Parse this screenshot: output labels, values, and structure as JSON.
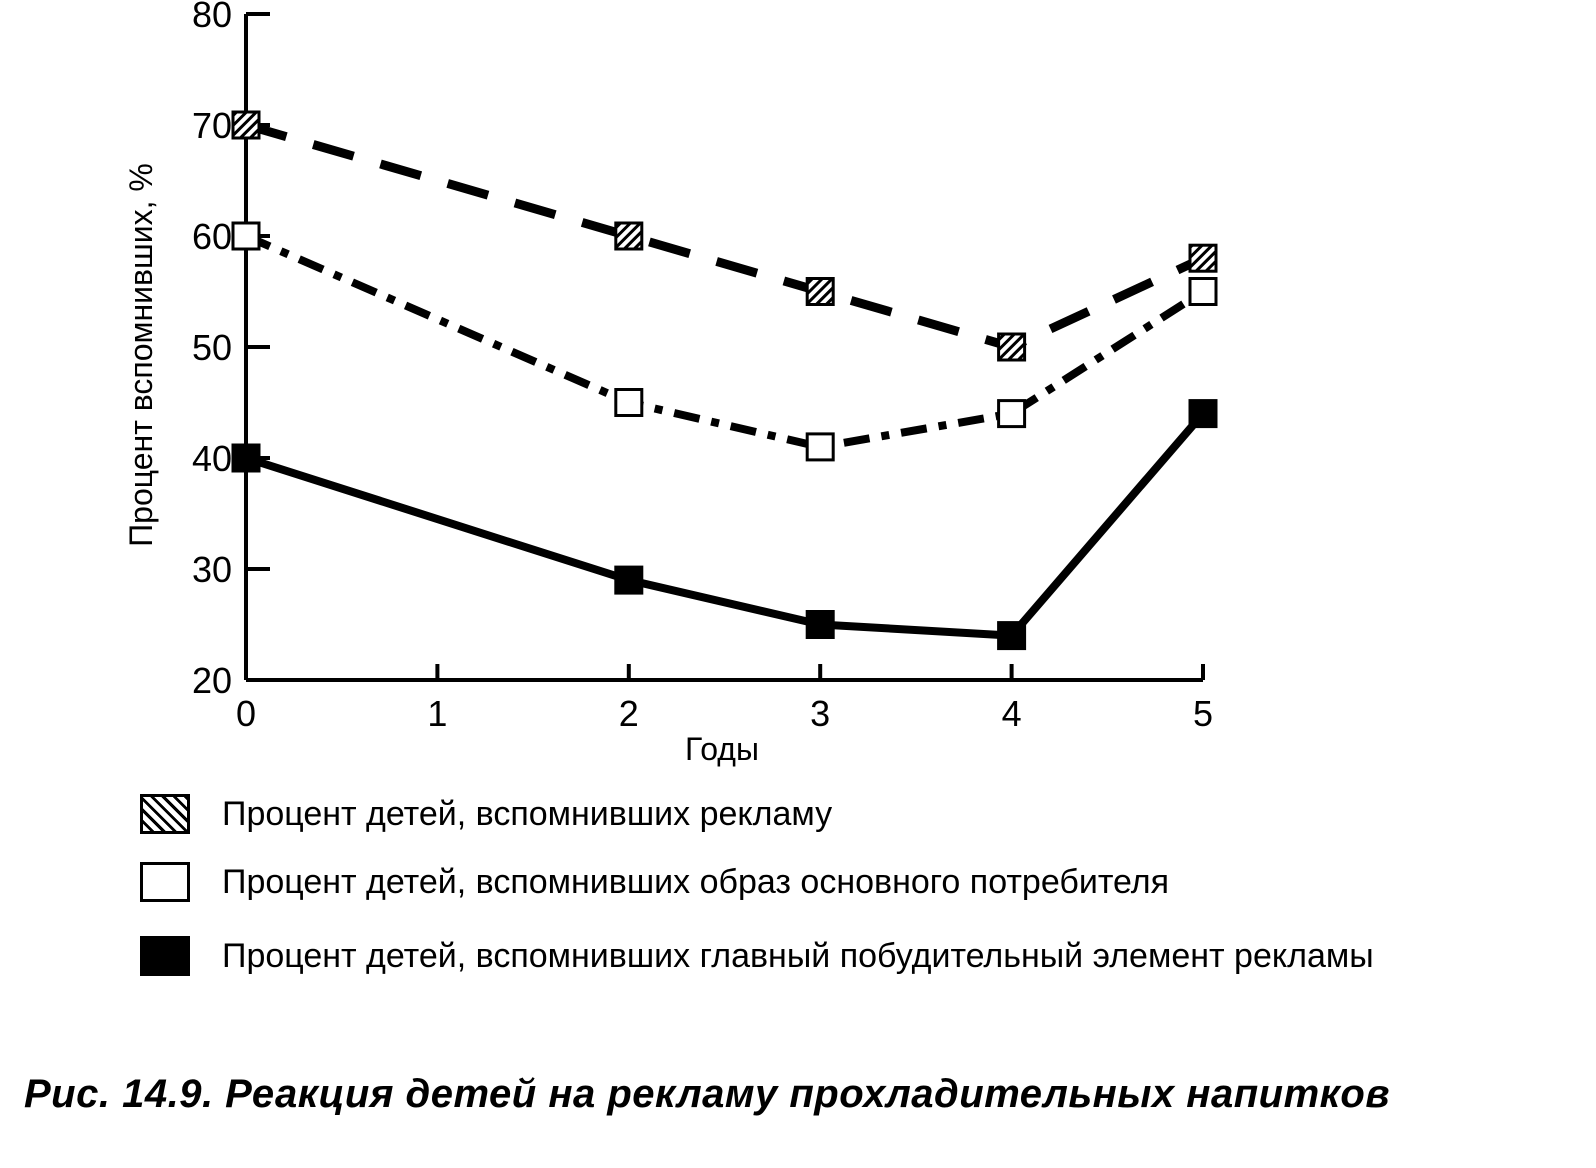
{
  "chart_data": {
    "type": "line",
    "title": "",
    "xlabel": "Годы",
    "ylabel": "Процент вспомнивших, %",
    "x": [
      0,
      2,
      3,
      4,
      5
    ],
    "x_ticks": [
      "0",
      "1",
      "2",
      "3",
      "4",
      "5"
    ],
    "y_ticks": [
      "20",
      "30",
      "40",
      "50",
      "60",
      "70",
      "80"
    ],
    "xlim": [
      0,
      5
    ],
    "ylim": [
      20,
      80
    ],
    "grid": false,
    "legend_position": "bottom",
    "series": [
      {
        "name": "Процент детей, вспомнивших рекламу",
        "values": [
          70,
          60,
          55,
          50,
          58
        ],
        "marker": "hatched-square",
        "line": "dashed",
        "color": "#000000"
      },
      {
        "name": "Процент детей, вспомнивших образ основного потребителя",
        "values": [
          60,
          45,
          41,
          44,
          55
        ],
        "marker": "open-square",
        "line": "dash-dot",
        "color": "#000000"
      },
      {
        "name": "Процент детей, вспомнивших главный побудительный элемент рекламы",
        "values": [
          40,
          29,
          25,
          24,
          44
        ],
        "marker": "filled-square",
        "line": "solid",
        "color": "#000000"
      }
    ]
  },
  "caption": "Рис. 14.9. Реакция детей на рекламу прохладительных напитков"
}
